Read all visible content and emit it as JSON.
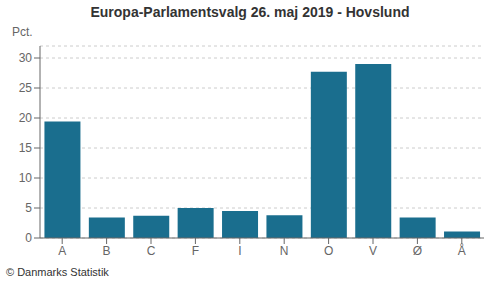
{
  "chart_data": {
    "type": "bar",
    "title": "Europa-Parlamentsvalg 26. maj 2019 - Hovslund",
    "categories": [
      "A",
      "B",
      "C",
      "F",
      "I",
      "N",
      "O",
      "V",
      "Ø",
      "Å"
    ],
    "values": [
      19.4,
      3.4,
      3.7,
      5.0,
      4.5,
      3.8,
      27.7,
      29.0,
      3.4,
      1.1
    ],
    "color": "#1a6e8e",
    "ylabel": "Pct.",
    "ylim": [
      0,
      32
    ],
    "yticks": [
      0,
      5,
      10,
      15,
      20,
      25,
      30
    ],
    "grid": true,
    "footer": "© Danmarks Statistik"
  }
}
